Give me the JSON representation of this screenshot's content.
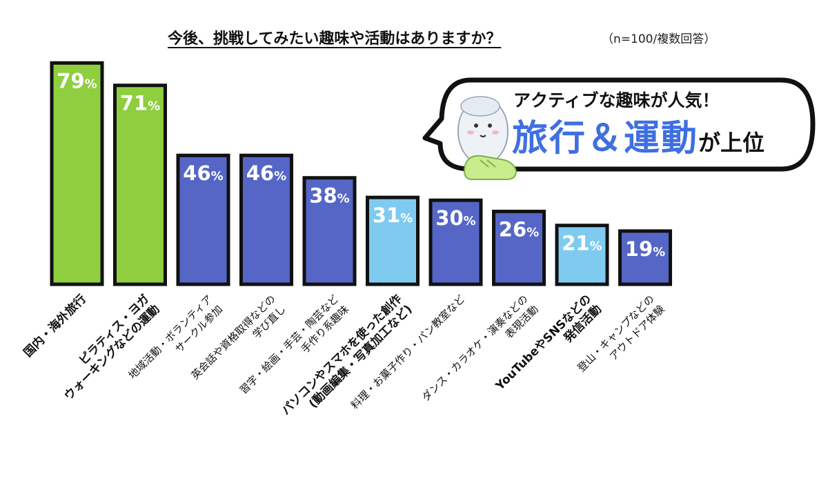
{
  "title": "今後、挑戦してみたい趣味や活動はありますか？",
  "subtitle": "（n=100/複数回答）",
  "callout": {
    "line1": "アクティブな趣味が人気！",
    "highlight": "旅行＆運動",
    "suffix": "が上位"
  },
  "icons": [
    "speech-bubble",
    "mascot-character",
    "sneaker-icon"
  ],
  "colors": {
    "green": "#8fce3f",
    "blue": "#5566c6",
    "lightblue": "#7fcbf0",
    "highlight_text": "#3f6fe0"
  },
  "chart_data": {
    "type": "bar",
    "title": "今後、挑戦してみたい趣味や活動はありますか？",
    "subtitle": "（n=100/複数回答）",
    "value_suffix": "%",
    "categories": [
      "国内・海外旅行",
      "ピラティス・ヨガ ウォーキングなどの運動",
      "地域活動・ボランティア サークル参加",
      "英会話や資格取得などの 学び直し",
      "習字・絵画・手芸・陶芸など 手作り系趣味",
      "パソコンやスマホを使った創作 (動画編集・写真加工など)",
      "料理・お菓子作り・パン教室など",
      "ダンス・カラオケ・演奏などの 表現活動",
      "YouTubeやSNSなどの 発信活動",
      "登山・キャンプなどの アウトドア体験"
    ],
    "label_lines": [
      [
        "国内・海外旅行"
      ],
      [
        "ピラティス・ヨガ",
        "ウォーキングなどの運動"
      ],
      [
        "地域活動・ボランティア",
        "サークル参加"
      ],
      [
        "英会話や資格取得などの",
        "学び直し"
      ],
      [
        "習字・絵画・手芸・陶芸など",
        "手作り系趣味"
      ],
      [
        "パソコンやスマホを使った創作",
        "(動画編集・写真加工など)"
      ],
      [
        "料理・お菓子作り・パン教室など"
      ],
      [
        "ダンス・カラオケ・演奏などの",
        "表現活動"
      ],
      [
        "YouTubeやSNSなどの",
        "発信活動"
      ],
      [
        "登山・キャンプなどの",
        "アウトドア体験"
      ]
    ],
    "label_bold": [
      true,
      true,
      false,
      false,
      false,
      true,
      false,
      false,
      true,
      false
    ],
    "values": [
      79,
      71,
      46,
      46,
      38,
      31,
      30,
      26,
      21,
      19
    ],
    "bar_colors": [
      "#8fce3f",
      "#8fce3f",
      "#5566c6",
      "#5566c6",
      "#5566c6",
      "#7fcbf0",
      "#5566c6",
      "#5566c6",
      "#7fcbf0",
      "#5566c6"
    ],
    "label_colors": [
      "#ffffff",
      "#ffffff",
      "#ffffff",
      "#ffffff",
      "#ffffff",
      "#ffffff",
      "#ffffff",
      "#ffffff",
      "#ffffff",
      "#ffffff"
    ],
    "ylim": [
      0,
      100
    ],
    "grid": false,
    "legend": "none"
  }
}
